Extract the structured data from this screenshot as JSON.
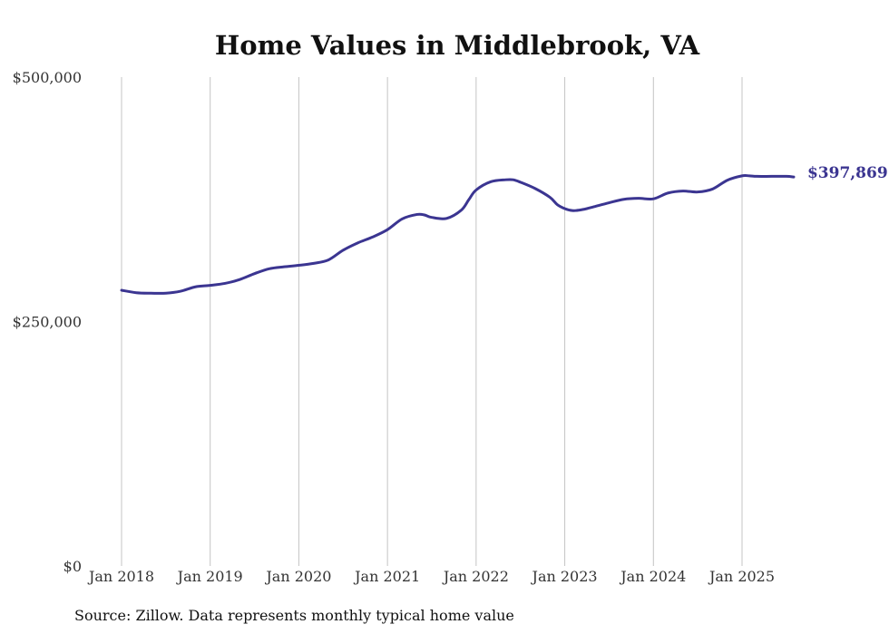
{
  "chart_data": {
    "type": "line",
    "title": "Home Values in Middlebrook, VA",
    "xlabel": "",
    "ylabel": "",
    "ylim": [
      0,
      500000
    ],
    "yticks": [
      {
        "value": 0,
        "label": "$0"
      },
      {
        "value": 250000,
        "label": "$250,000"
      },
      {
        "value": 500000,
        "label": "$500,000"
      }
    ],
    "xticks": [
      {
        "value": 2018.0,
        "label": "Jan 2018"
      },
      {
        "value": 2019.0,
        "label": "Jan 2019"
      },
      {
        "value": 2020.0,
        "label": "Jan 2020"
      },
      {
        "value": 2021.0,
        "label": "Jan 2021"
      },
      {
        "value": 2022.0,
        "label": "Jan 2022"
      },
      {
        "value": 2023.0,
        "label": "Jan 2023"
      },
      {
        "value": 2024.0,
        "label": "Jan 2024"
      },
      {
        "value": 2025.0,
        "label": "Jan 2025"
      }
    ],
    "xlim": [
      2018.0,
      2025.583
    ],
    "grid": "vertical",
    "series": [
      {
        "name": "Typical home value",
        "color": "#3b3591",
        "end_label": "$397,869",
        "x": [
          2018.0,
          2018.1667,
          2018.3333,
          2018.5,
          2018.6667,
          2018.8333,
          2019.0,
          2019.1667,
          2019.3333,
          2019.5,
          2019.6667,
          2019.8333,
          2020.0,
          2020.1667,
          2020.3333,
          2020.5,
          2020.6667,
          2020.8333,
          2021.0,
          2021.1667,
          2021.3333,
          2021.4167,
          2021.5,
          2021.6667,
          2021.8333,
          2021.9167,
          2022.0,
          2022.1667,
          2022.3333,
          2022.4167,
          2022.5,
          2022.6667,
          2022.8333,
          2022.9167,
          2023.0,
          2023.0833,
          2023.1667,
          2023.25,
          2023.3333,
          2023.5,
          2023.6667,
          2023.8333,
          2024.0,
          2024.1667,
          2024.3333,
          2024.5,
          2024.6667,
          2024.8333,
          2025.0,
          2025.0833,
          2025.1667,
          2025.3333,
          2025.5,
          2025.583
        ],
        "values": [
          282000,
          279500,
          279000,
          279000,
          281000,
          285500,
          287000,
          289000,
          293000,
          299000,
          304000,
          306000,
          307500,
          309500,
          313000,
          323000,
          330500,
          336500,
          344000,
          355000,
          359500,
          359000,
          356500,
          355500,
          364000,
          374500,
          384500,
          393000,
          395000,
          395000,
          392500,
          386000,
          377000,
          369500,
          365500,
          363500,
          364000,
          365500,
          367500,
          371500,
          375000,
          376000,
          375500,
          381500,
          383500,
          382500,
          385500,
          394500,
          399000,
          399000,
          398500,
          398500,
          398500,
          397869
        ]
      }
    ]
  },
  "source": "Source: Zillow. Data represents monthly typical home value"
}
